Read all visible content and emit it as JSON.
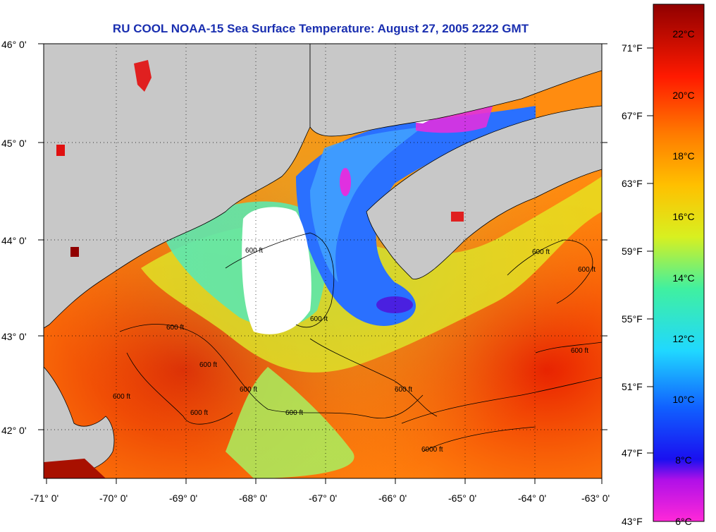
{
  "title": "RU COOL  NOAA-15  Sea Surface Temperature:  August 27, 2005 2222 GMT",
  "latitude_labels": [
    "46° 0'",
    "45° 0'",
    "44° 0'",
    "43° 0'",
    "42° 0'"
  ],
  "longitude_labels": [
    "-71° 0'",
    "-70° 0'",
    "-69° 0'",
    "-68° 0'",
    "-67° 0'",
    "-66° 0'",
    "-65° 0'",
    "-64° 0'",
    "-63° 0'"
  ],
  "fahrenheit_labels": [
    "71°F",
    "67°F",
    "63°F",
    "59°F",
    "55°F",
    "51°F",
    "47°F",
    "43°F"
  ],
  "celsius_labels": [
    "22°C",
    "20°C",
    "18°C",
    "16°C",
    "14°C",
    "12°C",
    "10°C",
    "8°C",
    "6°C"
  ],
  "contour_labels": [
    "600 ft",
    "600 ft",
    "600 ft",
    "600 ft",
    "600 ft",
    "600 ft",
    "600 ft",
    "600 ft",
    "600 ft",
    "600 ft",
    "600 ft",
    "600 ft",
    "6000 ft"
  ],
  "colors": {
    "title": "#1a2fb0",
    "land": "#c8c8c8",
    "cloud": "#ffffff",
    "coast": "#000000"
  }
}
